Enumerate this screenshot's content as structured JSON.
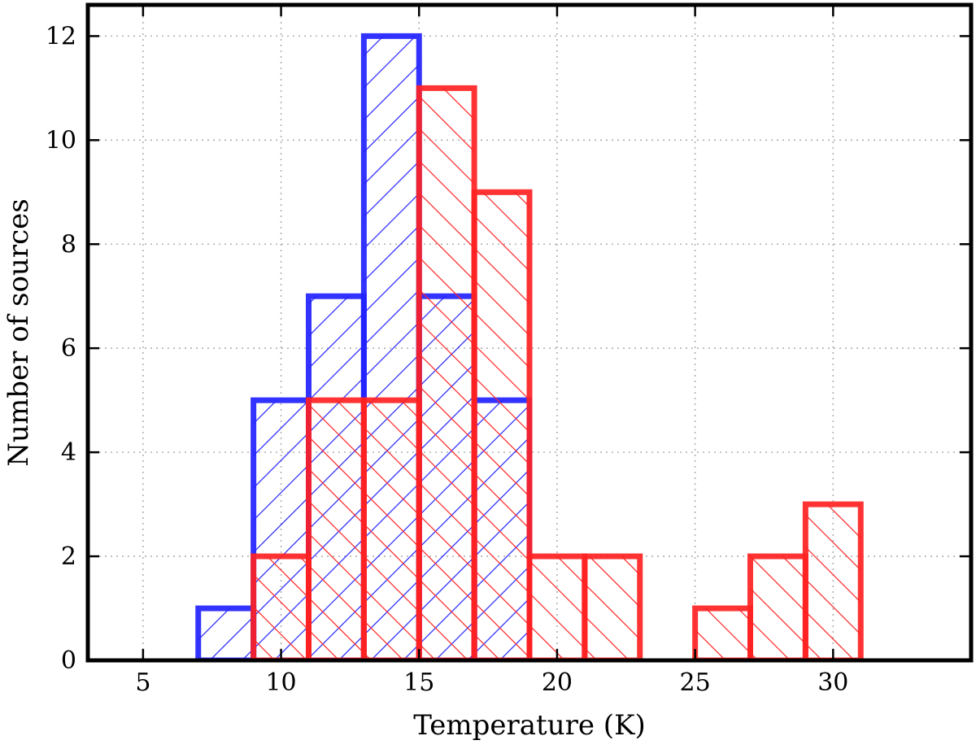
{
  "chart_data": {
    "type": "bar",
    "xlabel": "Temperature (K)",
    "ylabel": "Number of sources",
    "xlim": [
      3,
      35
    ],
    "ylim": [
      0,
      12.6
    ],
    "xticks": [
      5,
      10,
      15,
      20,
      25,
      30
    ],
    "yticks": [
      0,
      2,
      4,
      6,
      8,
      10,
      12
    ],
    "grid": true,
    "series": [
      {
        "color": "#2222ff",
        "hatch": "forward-diagonal",
        "bin_edges": [
          5,
          7,
          9,
          11,
          13,
          15,
          17,
          19
        ],
        "counts": [
          0,
          1,
          5,
          7,
          12,
          7,
          5
        ]
      },
      {
        "color": "#ff2222",
        "hatch": "back-diagonal",
        "bin_edges": [
          5,
          7,
          9,
          11,
          13,
          15,
          17,
          19,
          21,
          23,
          25,
          27,
          29,
          31,
          33
        ],
        "counts": [
          0,
          0,
          2,
          5,
          5,
          11,
          9,
          2,
          2,
          0,
          1,
          2,
          3,
          0
        ]
      }
    ]
  }
}
